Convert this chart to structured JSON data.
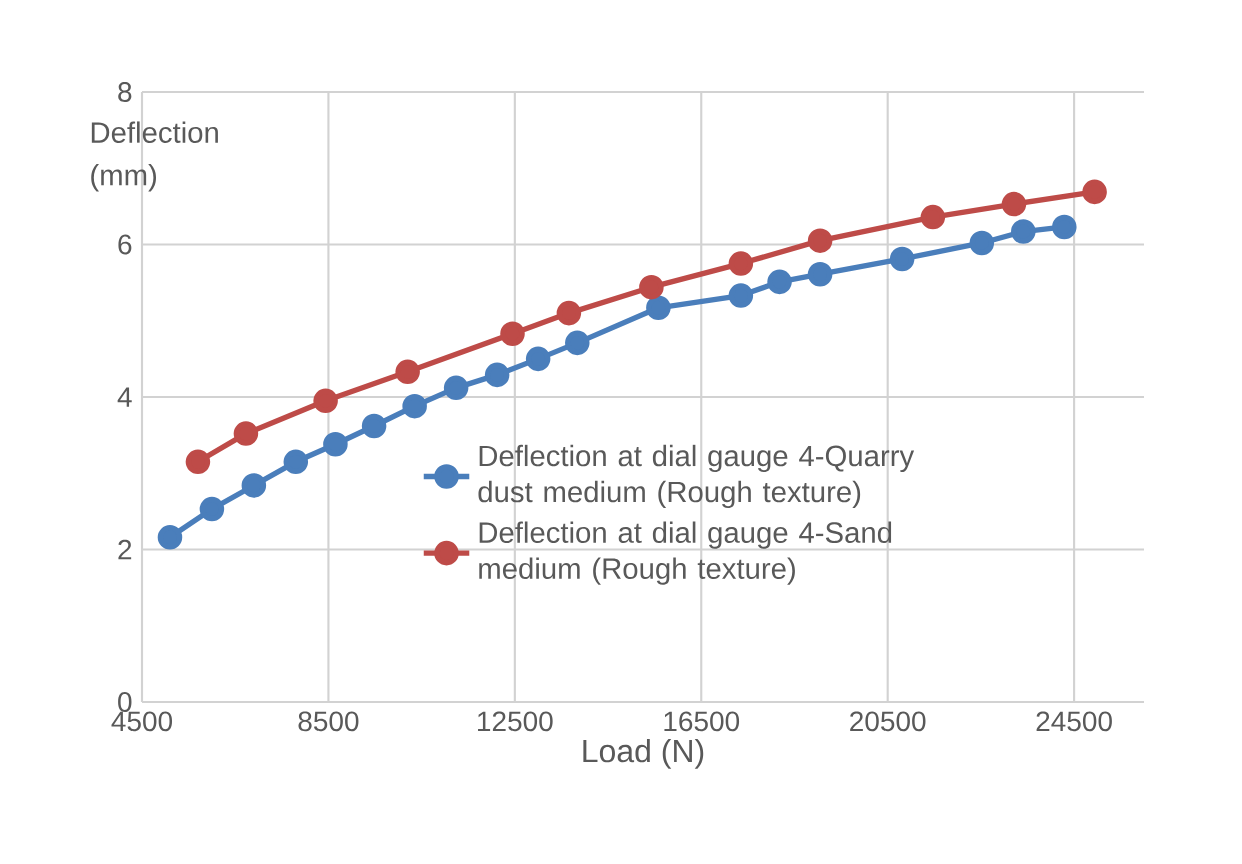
{
  "chart_data": {
    "type": "line",
    "xlabel": "Load (N)",
    "ylabel": "Deflection (mm)",
    "xlim": [
      4500,
      26000
    ],
    "xticks": [
      4500,
      8500,
      12500,
      16500,
      20500,
      24500
    ],
    "ylim": [
      0,
      8
    ],
    "yticks": [
      0,
      2,
      4,
      6,
      8
    ],
    "grid": true,
    "legend": "right",
    "marker": "circle",
    "line_style": "solid",
    "series": [
      {
        "name": "Deflection at dial gauge 4-Quarry dust medium (Rough texture)",
        "color": "#4a7ebb",
        "x": [
          5100,
          6000,
          6900,
          7800,
          8650,
          9480,
          10350,
          11240,
          12120,
          13000,
          13840,
          15580,
          17350,
          18180,
          19050,
          20810,
          22520,
          23410,
          24290
        ],
        "values": [
          2.16,
          2.53,
          2.84,
          3.15,
          3.38,
          3.62,
          3.88,
          4.12,
          4.29,
          4.5,
          4.71,
          5.17,
          5.33,
          5.51,
          5.61,
          5.81,
          6.02,
          6.17,
          6.23
        ]
      },
      {
        "name": "Deflection at dial gauge 4-Sand medium (Rough texture)",
        "color": "#be4b48",
        "x": [
          5700,
          6730,
          8440,
          10200,
          12450,
          13660,
          15430,
          17350,
          19050,
          21470,
          23210,
          24940
        ],
        "values": [
          3.15,
          3.52,
          3.95,
          4.33,
          4.83,
          5.1,
          5.44,
          5.75,
          6.05,
          6.36,
          6.53,
          6.69
        ]
      }
    ]
  }
}
